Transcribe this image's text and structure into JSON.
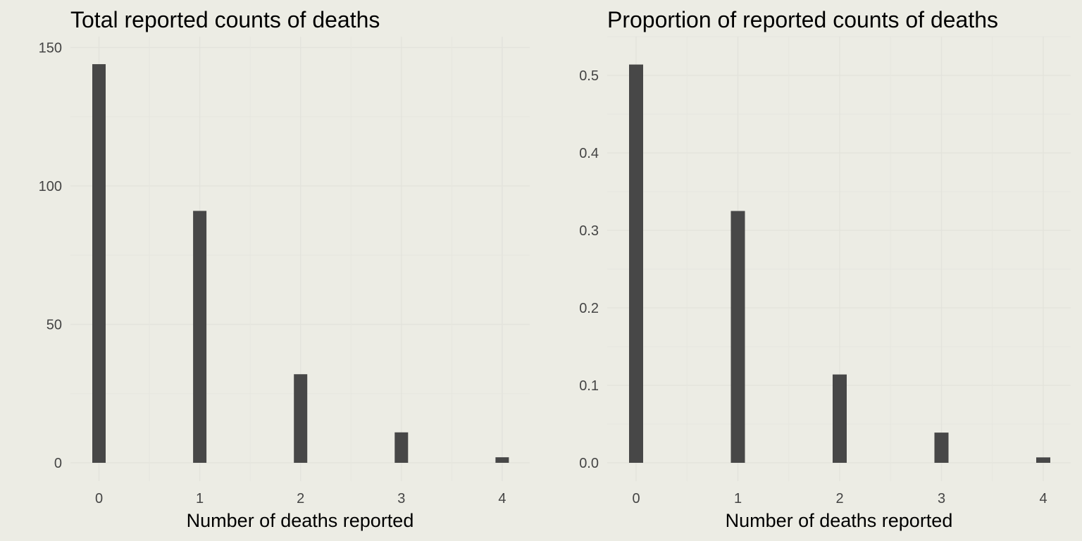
{
  "chart_data": [
    {
      "type": "bar",
      "title": "Total reported counts of deaths",
      "xlabel": "Number of deaths reported",
      "ylabel": "",
      "categories": [
        "0",
        "1",
        "2",
        "3",
        "4"
      ],
      "x": [
        0,
        1,
        2,
        3,
        4
      ],
      "values": [
        144,
        91,
        32,
        11,
        2
      ],
      "ylim": [
        0,
        150
      ],
      "yticks": [
        "0",
        "50",
        "100",
        "150"
      ],
      "xticks": [
        "0",
        "1",
        "2",
        "3",
        "4"
      ],
      "grid": true,
      "colors": {
        "bar": "#474747",
        "background": "#ecece4"
      }
    },
    {
      "type": "bar",
      "title": "Proportion of reported counts of deaths",
      "xlabel": "Number of deaths reported",
      "ylabel": "",
      "categories": [
        "0",
        "1",
        "2",
        "3",
        "4"
      ],
      "x": [
        0,
        1,
        2,
        3,
        4
      ],
      "values": [
        0.514,
        0.325,
        0.114,
        0.039,
        0.007
      ],
      "ylim": [
        0,
        0.5
      ],
      "yticks": [
        "0.0",
        "0.1",
        "0.2",
        "0.3",
        "0.4",
        "0.5"
      ],
      "xticks": [
        "0",
        "1",
        "2",
        "3",
        "4"
      ],
      "grid": true,
      "colors": {
        "bar": "#474747",
        "background": "#ecece4"
      }
    }
  ]
}
